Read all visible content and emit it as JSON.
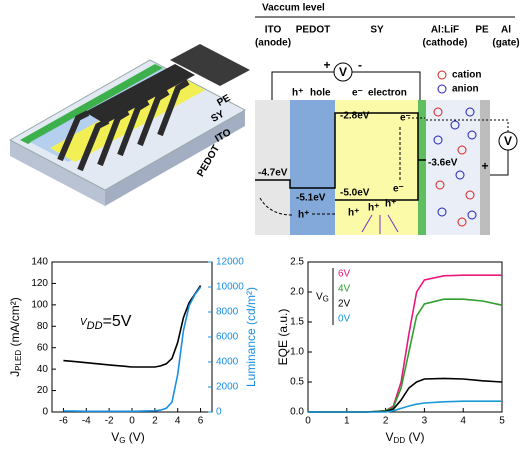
{
  "device": {
    "labels": [
      "PE",
      "SY",
      "ITO",
      "PEDOT"
    ]
  },
  "band_diagram": {
    "title": "Vaccum level",
    "layers": [
      [
        "ITO",
        "(anode)"
      ],
      [
        "PEDOT"
      ],
      [
        "SY"
      ],
      [
        "Al:LiF",
        "(cathode)"
      ],
      [
        "PE"
      ],
      [
        "Al",
        "(gate)"
      ]
    ],
    "circuit": {
      "source": "V",
      "plus": "+",
      "minus": "-"
    },
    "gate_source": {
      "source": "V",
      "plus": "+"
    },
    "carriers": [
      "h⁺",
      "hole",
      "e⁻",
      "electron"
    ],
    "legend": [
      "cation",
      "anion"
    ],
    "levels": [
      "-2.8eV",
      "-3.6eV",
      "-4.7eV",
      "-5.1eV",
      "-5.0eV"
    ],
    "charges": [
      "e⁻",
      "e⁻",
      "h⁺",
      "h⁺",
      "h⁺",
      "h⁺"
    ]
  },
  "chart_data": [
    {
      "type": "line",
      "xlabel": [
        "V",
        "G",
        " (V)"
      ],
      "ylabel": [
        "J",
        "PLED",
        " (mA/cm²)"
      ],
      "y2label": "Luminance (cd/m²)",
      "annotation": [
        "V",
        "DD",
        "=5V"
      ],
      "x": [
        -6,
        -5,
        -4,
        -3,
        -2,
        -1,
        0,
        1,
        2,
        2.5,
        3,
        3.5,
        4,
        4.5,
        5,
        5.5,
        6
      ],
      "series": [
        {
          "color": "#000000",
          "values": [
            48,
            47,
            46,
            45,
            44,
            43,
            42,
            42,
            42,
            43,
            45,
            50,
            65,
            88,
            102,
            110,
            118
          ]
        },
        {
          "color": "#1a8fe0",
          "axis": "y2",
          "values": [
            80,
            70,
            60,
            60,
            60,
            60,
            60,
            70,
            100,
            150,
            300,
            800,
            3000,
            6500,
            8500,
            9400,
            10000
          ]
        }
      ],
      "xlim": [
        -7,
        7
      ],
      "xticks": [
        -6,
        -4,
        -2,
        0,
        2,
        4,
        6
      ],
      "ylim": [
        0,
        140
      ],
      "yticks": [
        0,
        20,
        40,
        60,
        80,
        100,
        120,
        140
      ],
      "y2lim": [
        0,
        12000
      ],
      "y2ticks": [
        0,
        2000,
        4000,
        6000,
        8000,
        10000,
        12000
      ]
    },
    {
      "type": "line",
      "xlabel": [
        "V",
        "DD",
        " (V)"
      ],
      "ylabel": "EQE (a.u.)",
      "legend_title": [
        "V",
        "G"
      ],
      "legend": "upper left",
      "x": [
        0,
        0.5,
        1,
        1.5,
        2,
        2.2,
        2.4,
        2.6,
        2.8,
        3,
        3.5,
        4,
        4.5,
        5
      ],
      "series": [
        {
          "name": "6V",
          "color": "#e8197a",
          "values": [
            0,
            0,
            0,
            0,
            0.02,
            0.1,
            0.5,
            1.3,
            2.0,
            2.2,
            2.27,
            2.28,
            2.28,
            2.28
          ]
        },
        {
          "name": "4V",
          "color": "#2e9e2e",
          "values": [
            0,
            0,
            0,
            0,
            0.02,
            0.08,
            0.4,
            1.0,
            1.6,
            1.8,
            1.88,
            1.88,
            1.85,
            1.78
          ]
        },
        {
          "name": "2V",
          "color": "#000000",
          "values": [
            0,
            0,
            0,
            0,
            0.01,
            0.05,
            0.2,
            0.4,
            0.5,
            0.55,
            0.56,
            0.55,
            0.52,
            0.5
          ]
        },
        {
          "name": "0V",
          "color": "#1a9bd7",
          "values": [
            0,
            0,
            0,
            0,
            0,
            0.02,
            0.06,
            0.1,
            0.13,
            0.15,
            0.17,
            0.18,
            0.18,
            0.18
          ]
        }
      ],
      "xlim": [
        0,
        5
      ],
      "xticks": [
        0,
        1,
        2,
        3,
        4,
        5
      ],
      "ylim": [
        0,
        2.5
      ],
      "yticks": [
        {
          "value": 0,
          "label": "0.0"
        },
        0.5,
        {
          "value": 1,
          "label": "1.0"
        },
        1.5,
        {
          "value": 2,
          "label": "2.0"
        },
        2.5
      ]
    }
  ]
}
